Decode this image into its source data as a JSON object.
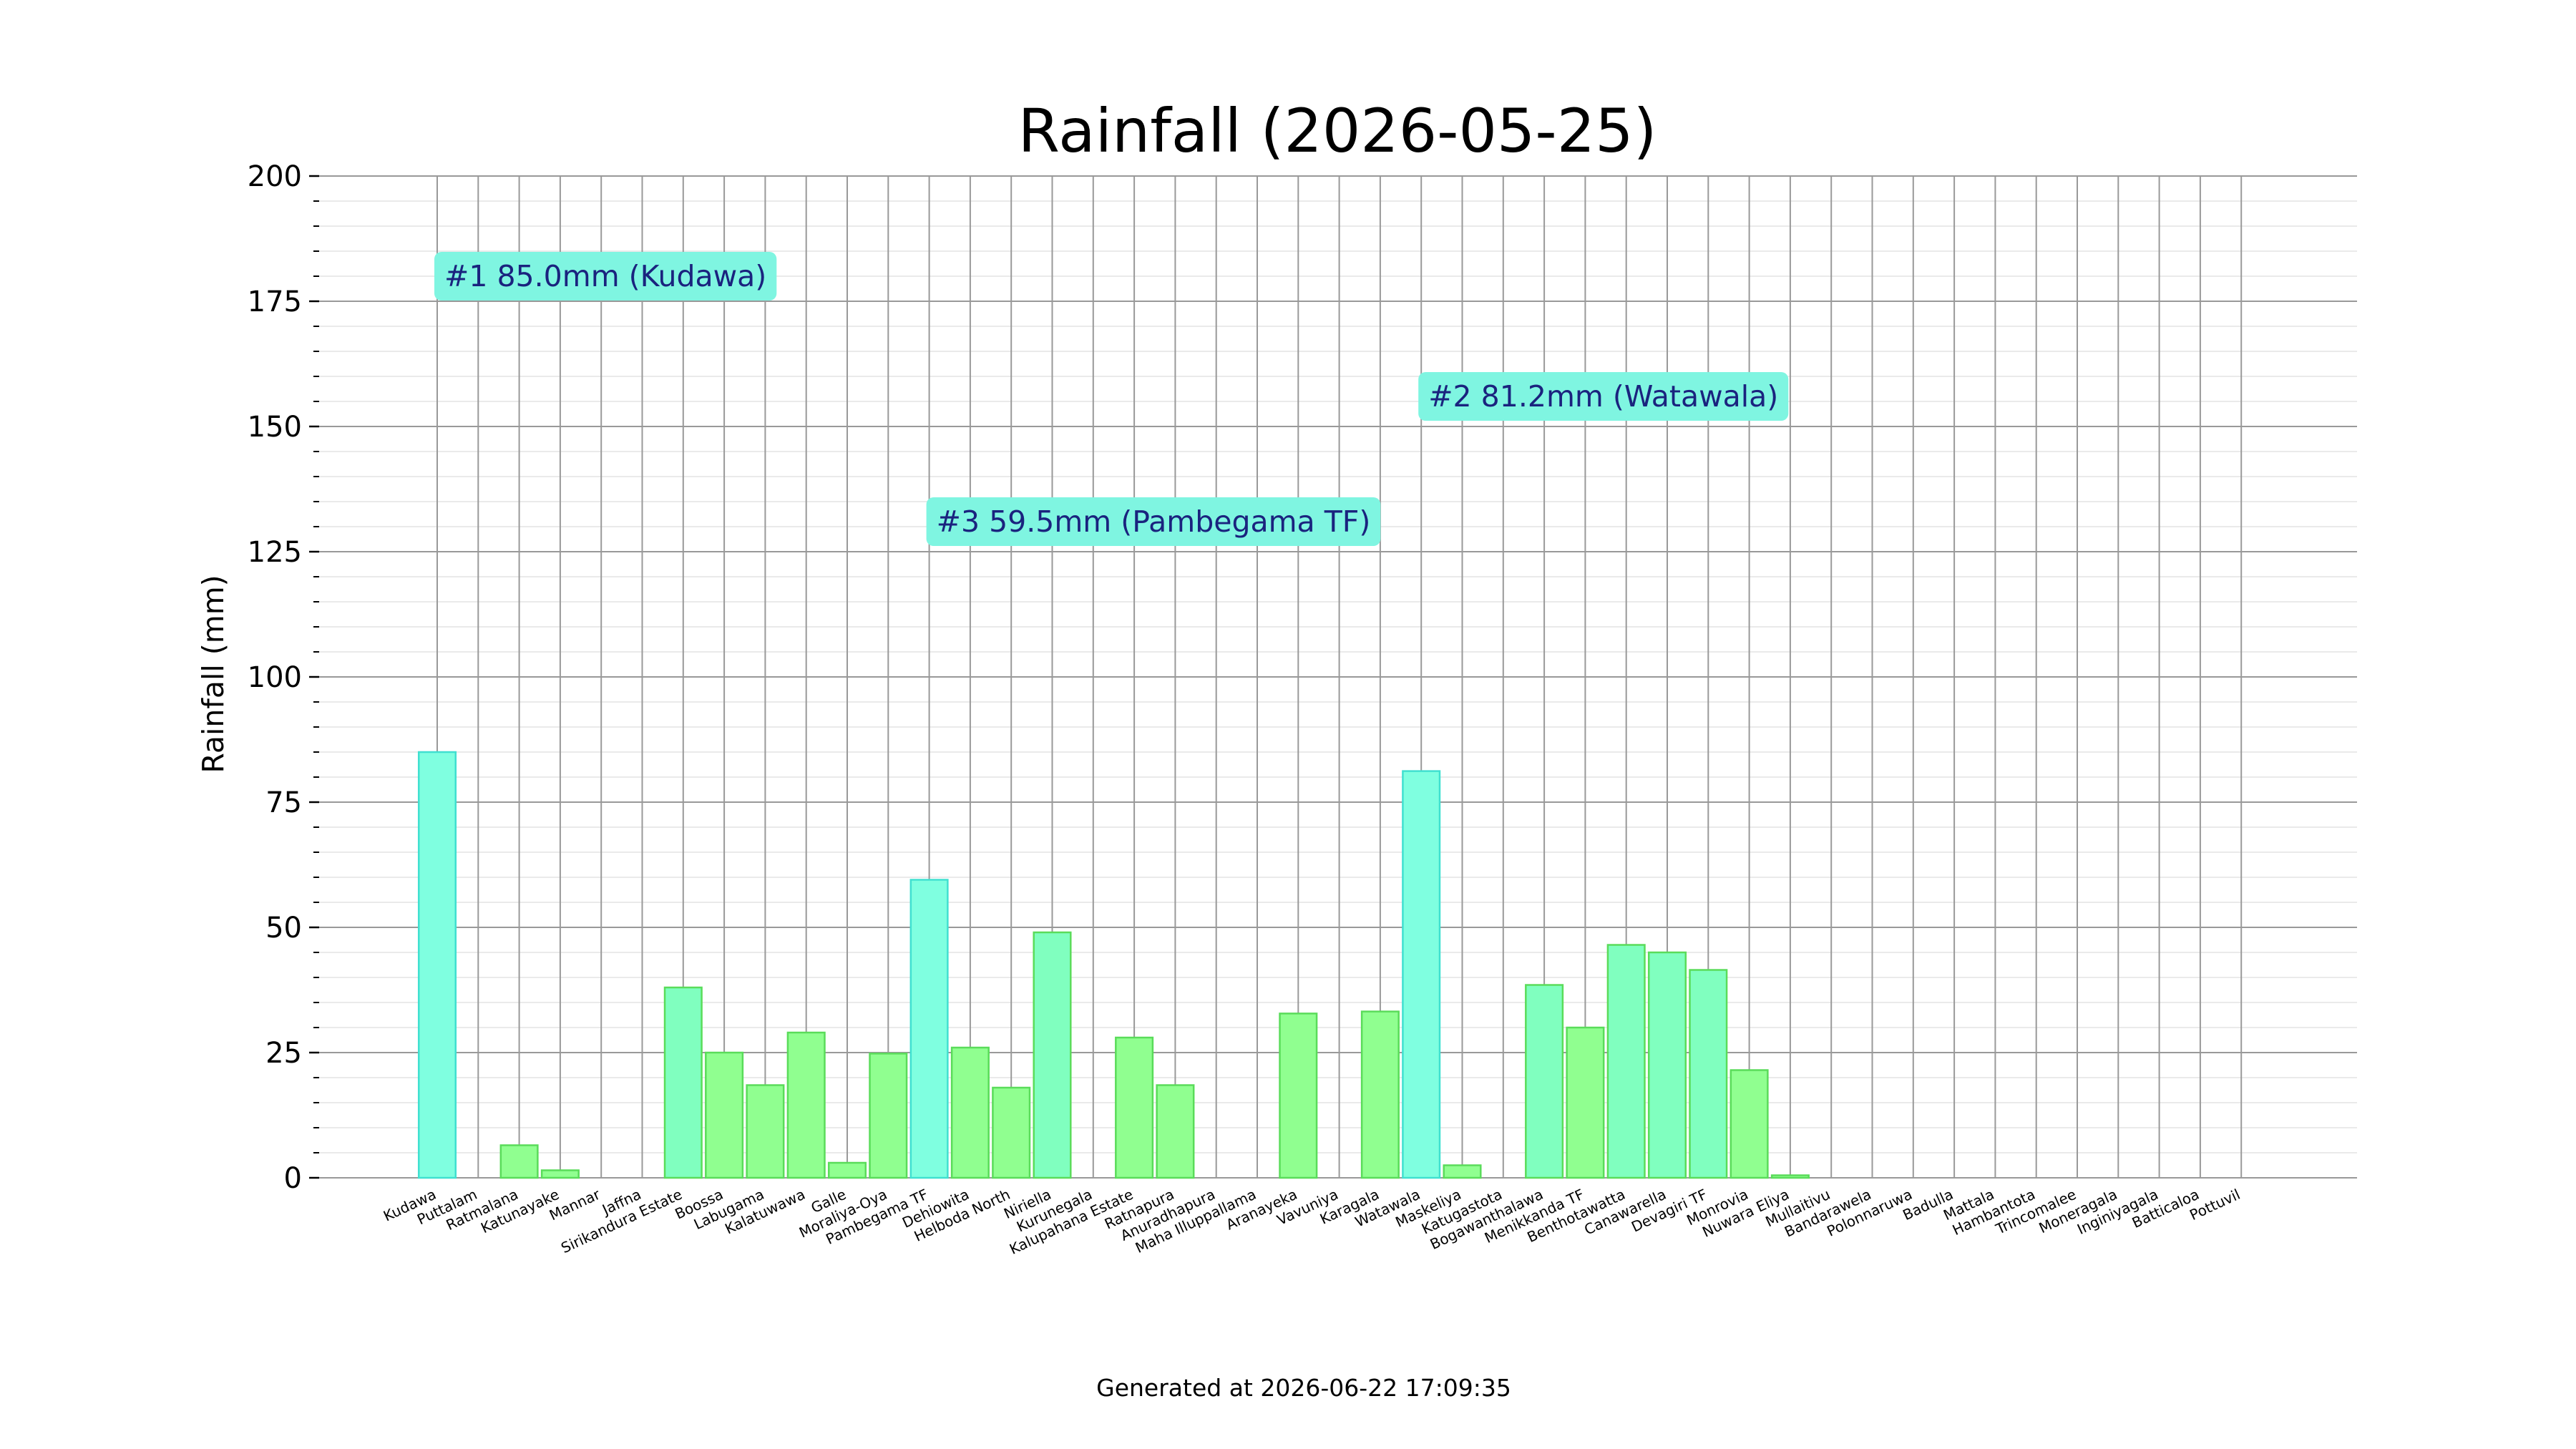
{
  "chart_data": {
    "type": "bar",
    "title": "Rainfall (2026-05-25)",
    "xlabel": "",
    "ylabel": "Rainfall (mm)",
    "ylim": [
      0,
      200
    ],
    "yticks": [
      0,
      25,
      50,
      75,
      100,
      125,
      150,
      175,
      200
    ],
    "grid": true,
    "legend": "none",
    "categories": [
      "Kudawa",
      "Puttalam",
      "Ratmalana",
      "Katunayake",
      "Mannar",
      "Jaffna",
      "Sirikandura Estate",
      "Boossa",
      "Labugama",
      "Kalatuwawa",
      "Galle",
      "Moraliya-Oya",
      "Pambegama TF",
      "Dehiowita",
      "Helboda North",
      "Niriella",
      "Kurunegala",
      "Kalupahana Estate",
      "Ratnapura",
      "Anuradhapura",
      "Maha Illuppallama",
      "Aranayeka",
      "Vavuniya",
      "Karagala",
      "Watawala",
      "Maskeliya",
      "Katugastota",
      "Bogawanthalawa",
      "Menikkanda TF",
      "Benthotawatta",
      "Canawarella",
      "Devagiri TF",
      "Monrovia",
      "Nuwara Eliya",
      "Mullaitivu",
      "Bandarawela",
      "Polonnaruwa",
      "Badulla",
      "Mattala",
      "Hambantota",
      "Trincomalee",
      "Moneragala",
      "Inginiyagala",
      "Batticaloa",
      "Pottuvil"
    ],
    "values": [
      85.0,
      0,
      6.5,
      1.5,
      0,
      0,
      38.0,
      25.0,
      18.5,
      29.0,
      3.0,
      24.8,
      59.5,
      26.0,
      18.0,
      49.0,
      0,
      28.0,
      18.5,
      0,
      0,
      32.8,
      0,
      33.2,
      81.2,
      2.5,
      0,
      38.5,
      30.0,
      46.5,
      45.0,
      41.5,
      21.5,
      0.5,
      0,
      0,
      0,
      0,
      0,
      0,
      0,
      0,
      0,
      0,
      0
    ],
    "colors": {
      "top": "#7fffe0",
      "top_edge": "#40e0d0",
      "mid": "#80ffbf",
      "low": "#90ff90",
      "edge": "#5adc5a",
      "label_box": "#7ff5e1",
      "label_text": "#1a237e"
    },
    "annotations": [
      {
        "category": "Kudawa",
        "text": "#1 85.0mm (Kudawa)",
        "y": 180
      },
      {
        "category": "Watawala",
        "text": "#2 81.2mm (Watawala)",
        "y": 156
      },
      {
        "category": "Pambegama TF",
        "text": "#3 59.5mm (Pambegama TF)",
        "y": 131
      }
    ]
  },
  "footer": {
    "generated": "Generated at 2026-06-22 17:09:35"
  }
}
